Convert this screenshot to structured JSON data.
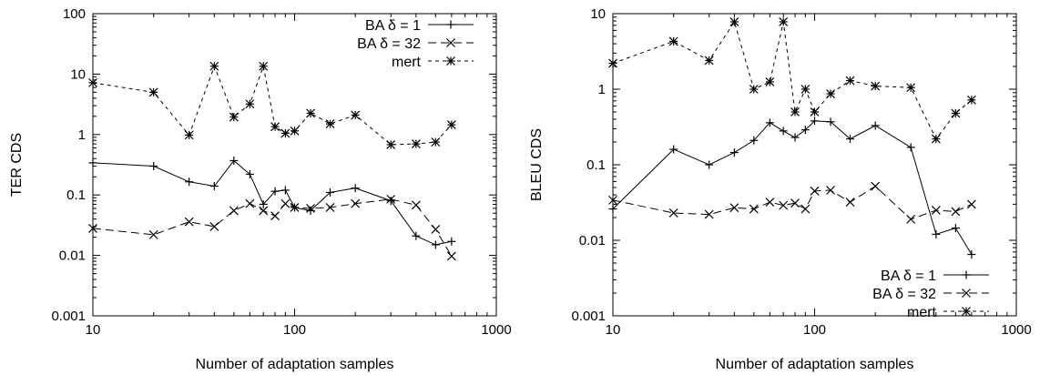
{
  "chart_data": [
    {
      "type": "line",
      "xscale": "log",
      "yscale": "log",
      "xlim": [
        10,
        1000
      ],
      "ylim": [
        0.001,
        100
      ],
      "xlabel": "Number of adaptation samples",
      "ylabel": "TER CDS",
      "xticks": [
        "10",
        "100",
        "1000"
      ],
      "yticks": [
        "0.001",
        "0.01",
        "0.1",
        "1",
        "10",
        "100"
      ],
      "legend_position": "top-right",
      "series": [
        {
          "name": "BA δ = 1",
          "marker": "plus",
          "dash": "solid",
          "x": [
            10,
            20,
            30,
            40,
            50,
            60,
            70,
            80,
            90,
            100,
            120,
            150,
            200,
            300,
            400,
            500,
            600
          ],
          "y": [
            0.34,
            0.3,
            0.165,
            0.14,
            0.37,
            0.22,
            0.07,
            0.115,
            0.12,
            0.062,
            0.055,
            0.11,
            0.13,
            0.08,
            0.021,
            0.015,
            0.017
          ]
        },
        {
          "name": "BA δ = 32",
          "marker": "cross",
          "dash": "long",
          "x": [
            10,
            20,
            30,
            40,
            50,
            60,
            70,
            80,
            90,
            100,
            120,
            150,
            200,
            300,
            400,
            500,
            600
          ],
          "y": [
            0.028,
            0.022,
            0.036,
            0.03,
            0.055,
            0.072,
            0.055,
            0.045,
            0.072,
            0.062,
            0.06,
            0.062,
            0.072,
            0.085,
            0.068,
            0.027,
            0.0097
          ]
        },
        {
          "name": "mert",
          "marker": "star",
          "dash": "short",
          "x": [
            10,
            20,
            30,
            40,
            50,
            60,
            70,
            80,
            90,
            100,
            120,
            150,
            200,
            300,
            400,
            500,
            600
          ],
          "y": [
            7.2,
            5.0,
            0.98,
            13.5,
            1.95,
            3.2,
            13.5,
            1.35,
            1.05,
            1.15,
            2.25,
            1.5,
            2.1,
            0.68,
            0.7,
            0.75,
            1.45
          ]
        }
      ]
    },
    {
      "type": "line",
      "xscale": "log",
      "yscale": "log",
      "xlim": [
        10,
        1000
      ],
      "ylim": [
        0.001,
        10
      ],
      "xlabel": "Number of adaptation samples",
      "ylabel": "BLEU CDS",
      "xticks": [
        "10",
        "100",
        "1000"
      ],
      "yticks": [
        "0.001",
        "0.01",
        "0.1",
        "1",
        "10"
      ],
      "legend_position": "bottom-right",
      "series": [
        {
          "name": "BA δ = 1",
          "marker": "plus",
          "dash": "solid",
          "x": [
            10,
            20,
            30,
            40,
            50,
            60,
            70,
            80,
            90,
            100,
            120,
            150,
            200,
            300,
            400,
            500,
            600
          ],
          "y": [
            0.026,
            0.16,
            0.1,
            0.145,
            0.21,
            0.36,
            0.28,
            0.23,
            0.29,
            0.38,
            0.37,
            0.22,
            0.33,
            0.17,
            0.012,
            0.0145,
            0.0065
          ]
        },
        {
          "name": "BA δ = 32",
          "marker": "cross",
          "dash": "long",
          "x": [
            10,
            20,
            30,
            40,
            50,
            60,
            70,
            80,
            90,
            100,
            120,
            150,
            200,
            300,
            400,
            500,
            600
          ],
          "y": [
            0.034,
            0.023,
            0.022,
            0.027,
            0.026,
            0.032,
            0.029,
            0.031,
            0.026,
            0.045,
            0.046,
            0.032,
            0.052,
            0.019,
            0.025,
            0.024,
            0.03
          ]
        },
        {
          "name": "mert",
          "marker": "star",
          "dash": "short",
          "x": [
            10,
            20,
            30,
            40,
            50,
            60,
            70,
            80,
            90,
            100,
            120,
            150,
            200,
            300,
            400,
            500,
            600
          ],
          "y": [
            2.2,
            4.3,
            2.4,
            7.8,
            1.0,
            1.25,
            7.8,
            0.5,
            1.0,
            0.5,
            0.87,
            1.3,
            1.1,
            1.05,
            0.22,
            0.48,
            0.72
          ]
        }
      ]
    }
  ]
}
